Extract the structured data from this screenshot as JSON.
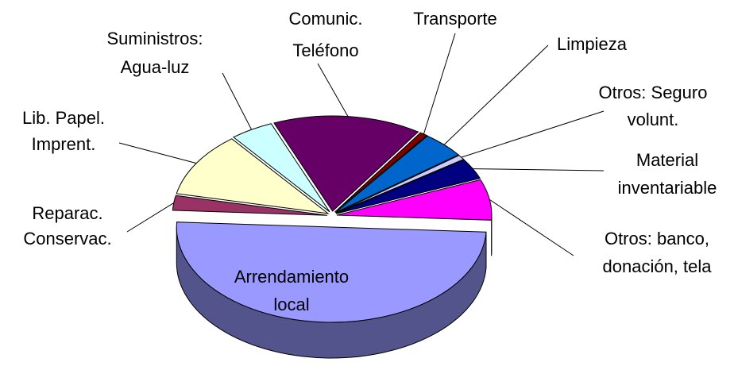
{
  "chart_data": {
    "type": "pie3d",
    "categories": [
      [
        "Arrendamiento",
        "local"
      ],
      [
        "Reparac.",
        "Conservac."
      ],
      [
        "Lib. Papel.",
        "Imprent."
      ],
      [
        "Suministros:",
        "Agua-luz"
      ],
      [
        "Comunic.",
        "Teléfono"
      ],
      [
        "Transporte"
      ],
      [
        "Limpieza"
      ],
      [
        "Otros: Seguro",
        "volunt."
      ],
      [
        "Material",
        "inventariable"
      ],
      [
        "Otros: banco,",
        "donación, tela"
      ]
    ],
    "values": [
      50,
      2.5,
      11,
      4.5,
      15.5,
      0.8,
      4.5,
      0.8,
      3.5,
      6.9
    ],
    "colors": [
      "#9999ff",
      "#993366",
      "#ffffcc",
      "#ccffff",
      "#660066",
      "#800000",
      "#0066cc",
      "#ccccff",
      "#000080",
      "#ff00ff"
    ]
  }
}
